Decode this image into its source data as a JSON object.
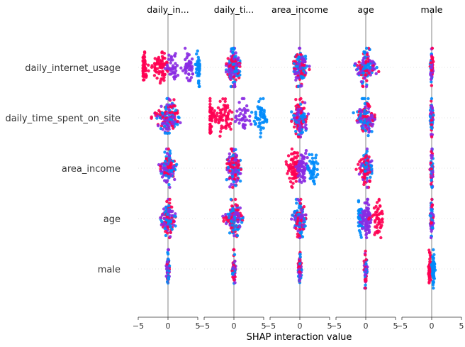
{
  "chart_data": {
    "type": "scatter",
    "subtype": "shap-interaction-beeswarm",
    "xlabel": "SHAP interaction value",
    "features": [
      "daily_internet_usage",
      "daily_time_spent_on_site",
      "area_income",
      "age",
      "male"
    ],
    "column_titles": [
      "daily_in...",
      "daily_ti...",
      "area_income",
      "age",
      "male"
    ],
    "row_labels": [
      "daily_internet_usage",
      "daily_time_spent_on_site",
      "area_income",
      "age",
      "male"
    ],
    "xlim": [
      -5,
      5
    ],
    "xticks": [
      -5,
      0,
      5
    ],
    "xtick_labels": [
      "−5",
      "0",
      "5"
    ],
    "colors": {
      "low": "#008bfb",
      "mid": "#8a2be2",
      "high": "#ff0052",
      "zero_line": "#999999",
      "grid": "#cccccc"
    },
    "cells": [
      [
        {
          "x_range": [
            -4.2,
            5.3
          ],
          "clusters": [
            {
              "center": -4.0,
              "spread": 0.25,
              "count": 45,
              "color": "high"
            },
            {
              "center": -1.2,
              "spread": 0.8,
              "count": 70,
              "color": "high"
            },
            {
              "center": 0.8,
              "spread": 0.6,
              "count": 40,
              "color": "mid"
            },
            {
              "center": 3.5,
              "spread": 0.4,
              "count": 45,
              "color": "mid"
            },
            {
              "center": 5.1,
              "spread": 0.2,
              "count": 45,
              "color": "low"
            }
          ]
        },
        {
          "x_range": [
            -1.3,
            1.0
          ],
          "clusters": [
            {
              "center": 0.0,
              "spread": 0.5,
              "count": 160,
              "color": "mixed"
            }
          ]
        },
        {
          "x_range": [
            -1.6,
            1.6
          ],
          "clusters": [
            {
              "center": 0.0,
              "spread": 0.6,
              "count": 140,
              "color": "mixed"
            }
          ]
        },
        {
          "x_range": [
            -2.2,
            2.2
          ],
          "clusters": [
            {
              "center": 0.0,
              "spread": 0.7,
              "count": 130,
              "color": "mixed"
            }
          ]
        },
        {
          "x_range": [
            -0.3,
            0.3
          ],
          "clusters": [
            {
              "center": 0.0,
              "spread": 0.12,
              "count": 60,
              "color": "mixed"
            }
          ]
        }
      ],
      [
        {
          "x_range": [
            -3.5,
            2.5
          ],
          "clusters": [
            {
              "center": 0.0,
              "spread": 1.0,
              "count": 170,
              "color": "mixed"
            }
          ]
        },
        {
          "x_range": [
            -4.0,
            5.5
          ],
          "clusters": [
            {
              "center": -4.0,
              "spread": 0.25,
              "count": 50,
              "color": "high"
            },
            {
              "center": -1.8,
              "spread": 0.9,
              "count": 70,
              "color": "high"
            },
            {
              "center": 1.5,
              "spread": 0.7,
              "count": 40,
              "color": "mid"
            },
            {
              "center": 4.6,
              "spread": 0.5,
              "count": 55,
              "color": "low"
            }
          ]
        },
        {
          "x_range": [
            -1.5,
            1.5
          ],
          "clusters": [
            {
              "center": 0.0,
              "spread": 0.6,
              "count": 150,
              "color": "mixed"
            }
          ]
        },
        {
          "x_range": [
            -2.4,
            1.5
          ],
          "clusters": [
            {
              "center": 0.0,
              "spread": 0.7,
              "count": 150,
              "color": "mixed"
            }
          ]
        },
        {
          "x_range": [
            -0.3,
            0.3
          ],
          "clusters": [
            {
              "center": 0.0,
              "spread": 0.12,
              "count": 60,
              "color": "mixed"
            }
          ]
        }
      ],
      [
        {
          "x_range": [
            -2.0,
            2.0
          ],
          "clusters": [
            {
              "center": 0.0,
              "spread": 0.6,
              "count": 130,
              "color": "mixed"
            }
          ]
        },
        {
          "x_range": [
            -1.5,
            1.8
          ],
          "clusters": [
            {
              "center": 0.0,
              "spread": 0.6,
              "count": 150,
              "color": "mixed"
            }
          ]
        },
        {
          "x_range": [
            -2.3,
            3.0
          ],
          "clusters": [
            {
              "center": -1.0,
              "spread": 0.6,
              "count": 80,
              "color": "high"
            },
            {
              "center": 0.5,
              "spread": 0.5,
              "count": 60,
              "color": "mid"
            },
            {
              "center": 2.2,
              "spread": 0.5,
              "count": 45,
              "color": "low"
            }
          ]
        },
        {
          "x_range": [
            -2.0,
            1.0
          ],
          "clusters": [
            {
              "center": 0.0,
              "spread": 0.5,
              "count": 110,
              "color": "mixed"
            }
          ]
        },
        {
          "x_range": [
            -0.3,
            0.3
          ],
          "clusters": [
            {
              "center": 0.0,
              "spread": 0.12,
              "count": 60,
              "color": "mixed"
            }
          ]
        }
      ],
      [
        {
          "x_range": [
            -2.0,
            2.5
          ],
          "clusters": [
            {
              "center": 0.0,
              "spread": 0.6,
              "count": 130,
              "color": "mixed"
            }
          ]
        },
        {
          "x_range": [
            -2.5,
            1.5
          ],
          "clusters": [
            {
              "center": 0.0,
              "spread": 0.6,
              "count": 150,
              "color": "mixed"
            }
          ]
        },
        {
          "x_range": [
            -1.5,
            1.0
          ],
          "clusters": [
            {
              "center": 0.0,
              "spread": 0.5,
              "count": 130,
              "color": "mixed"
            }
          ]
        },
        {
          "x_range": [
            -1.2,
            2.8
          ],
          "clusters": [
            {
              "center": -0.9,
              "spread": 0.35,
              "count": 45,
              "color": "low"
            },
            {
              "center": 0.2,
              "spread": 0.4,
              "count": 80,
              "color": "mid"
            },
            {
              "center": 2.0,
              "spread": 0.6,
              "count": 50,
              "color": "high"
            }
          ]
        },
        {
          "x_range": [
            -0.3,
            0.3
          ],
          "clusters": [
            {
              "center": 0.0,
              "spread": 0.12,
              "count": 60,
              "color": "mixed"
            }
          ]
        }
      ],
      [
        {
          "x_range": [
            -0.3,
            0.3
          ],
          "clusters": [
            {
              "center": 0.0,
              "spread": 0.12,
              "count": 70,
              "color": "mixed"
            }
          ]
        },
        {
          "x_range": [
            -0.3,
            0.3
          ],
          "clusters": [
            {
              "center": 0.0,
              "spread": 0.12,
              "count": 70,
              "color": "mixed"
            }
          ]
        },
        {
          "x_range": [
            -0.3,
            0.3
          ],
          "clusters": [
            {
              "center": 0.0,
              "spread": 0.12,
              "count": 70,
              "color": "mixed"
            }
          ]
        },
        {
          "x_range": [
            -0.3,
            0.3
          ],
          "clusters": [
            {
              "center": 0.0,
              "spread": 0.12,
              "count": 70,
              "color": "mixed"
            }
          ]
        },
        {
          "x_range": [
            -0.6,
            0.6
          ],
          "clusters": [
            {
              "center": -0.3,
              "spread": 0.1,
              "count": 60,
              "color": "high"
            },
            {
              "center": 0.3,
              "spread": 0.1,
              "count": 60,
              "color": "low"
            }
          ]
        }
      ]
    ]
  }
}
